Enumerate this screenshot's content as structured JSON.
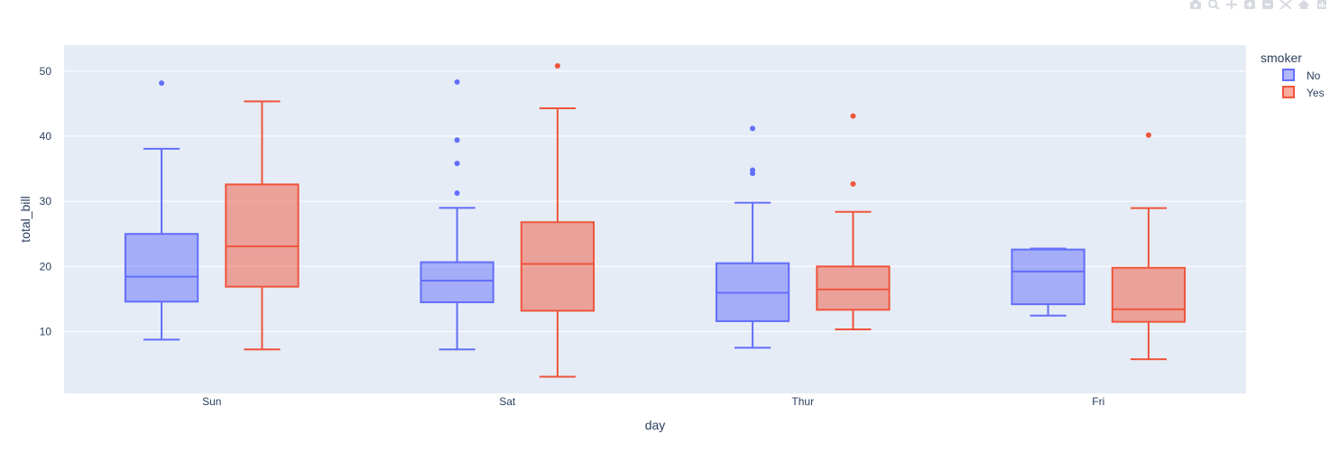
{
  "modebar": {
    "icons": [
      "camera-icon",
      "zoom-icon",
      "pan-icon",
      "zoom-in-icon",
      "zoom-out-icon",
      "autoscale-icon",
      "home-icon",
      "plotly-logo-icon"
    ]
  },
  "colors": {
    "plot_bg": "#E5ECF6",
    "grid": "#ffffff",
    "text": "#2a3f5f",
    "no": "#636EFA",
    "yes": "#EF553B"
  },
  "chart_data": {
    "type": "box",
    "xlabel": "day",
    "ylabel": "total_bill",
    "categories": [
      "Sun",
      "Sat",
      "Thur",
      "Fri"
    ],
    "ylim": [
      0.5,
      54
    ],
    "yticks": [
      10,
      20,
      30,
      40,
      50
    ],
    "grid": true,
    "legend": {
      "title": "smoker",
      "placement": "top-right"
    },
    "series": [
      {
        "name": "No",
        "color": "#636EFA",
        "boxes": [
          {
            "category": "Sun",
            "min": 8.77,
            "q1": 14.6,
            "median": 18.43,
            "q3": 25.0,
            "max": 38.07,
            "outliers": [
              48.17
            ]
          },
          {
            "category": "Sat",
            "min": 7.25,
            "q1": 14.5,
            "median": 17.82,
            "q3": 20.65,
            "max": 29.0,
            "outliers": [
              31.27,
              35.83,
              39.42,
              48.33
            ]
          },
          {
            "category": "Thur",
            "min": 7.51,
            "q1": 11.6,
            "median": 15.95,
            "q3": 20.5,
            "max": 29.8,
            "outliers": [
              34.3,
              34.8,
              41.19
            ]
          },
          {
            "category": "Fri",
            "min": 12.46,
            "q1": 14.2,
            "median": 19.23,
            "q3": 22.6,
            "max": 22.75,
            "outliers": []
          }
        ]
      },
      {
        "name": "Yes",
        "color": "#EF553B",
        "boxes": [
          {
            "category": "Sun",
            "min": 7.25,
            "q1": 16.9,
            "median": 23.1,
            "q3": 32.6,
            "max": 45.35,
            "outliers": []
          },
          {
            "category": "Sat",
            "min": 3.07,
            "q1": 13.2,
            "median": 20.39,
            "q3": 26.8,
            "max": 44.3,
            "outliers": [
              50.81
            ]
          },
          {
            "category": "Thur",
            "min": 10.34,
            "q1": 13.35,
            "median": 16.47,
            "q3": 20.0,
            "max": 28.4,
            "outliers": [
              32.68,
              43.11
            ]
          },
          {
            "category": "Fri",
            "min": 5.75,
            "q1": 11.5,
            "median": 13.42,
            "q3": 19.8,
            "max": 28.97,
            "outliers": [
              40.17
            ]
          }
        ]
      }
    ]
  }
}
